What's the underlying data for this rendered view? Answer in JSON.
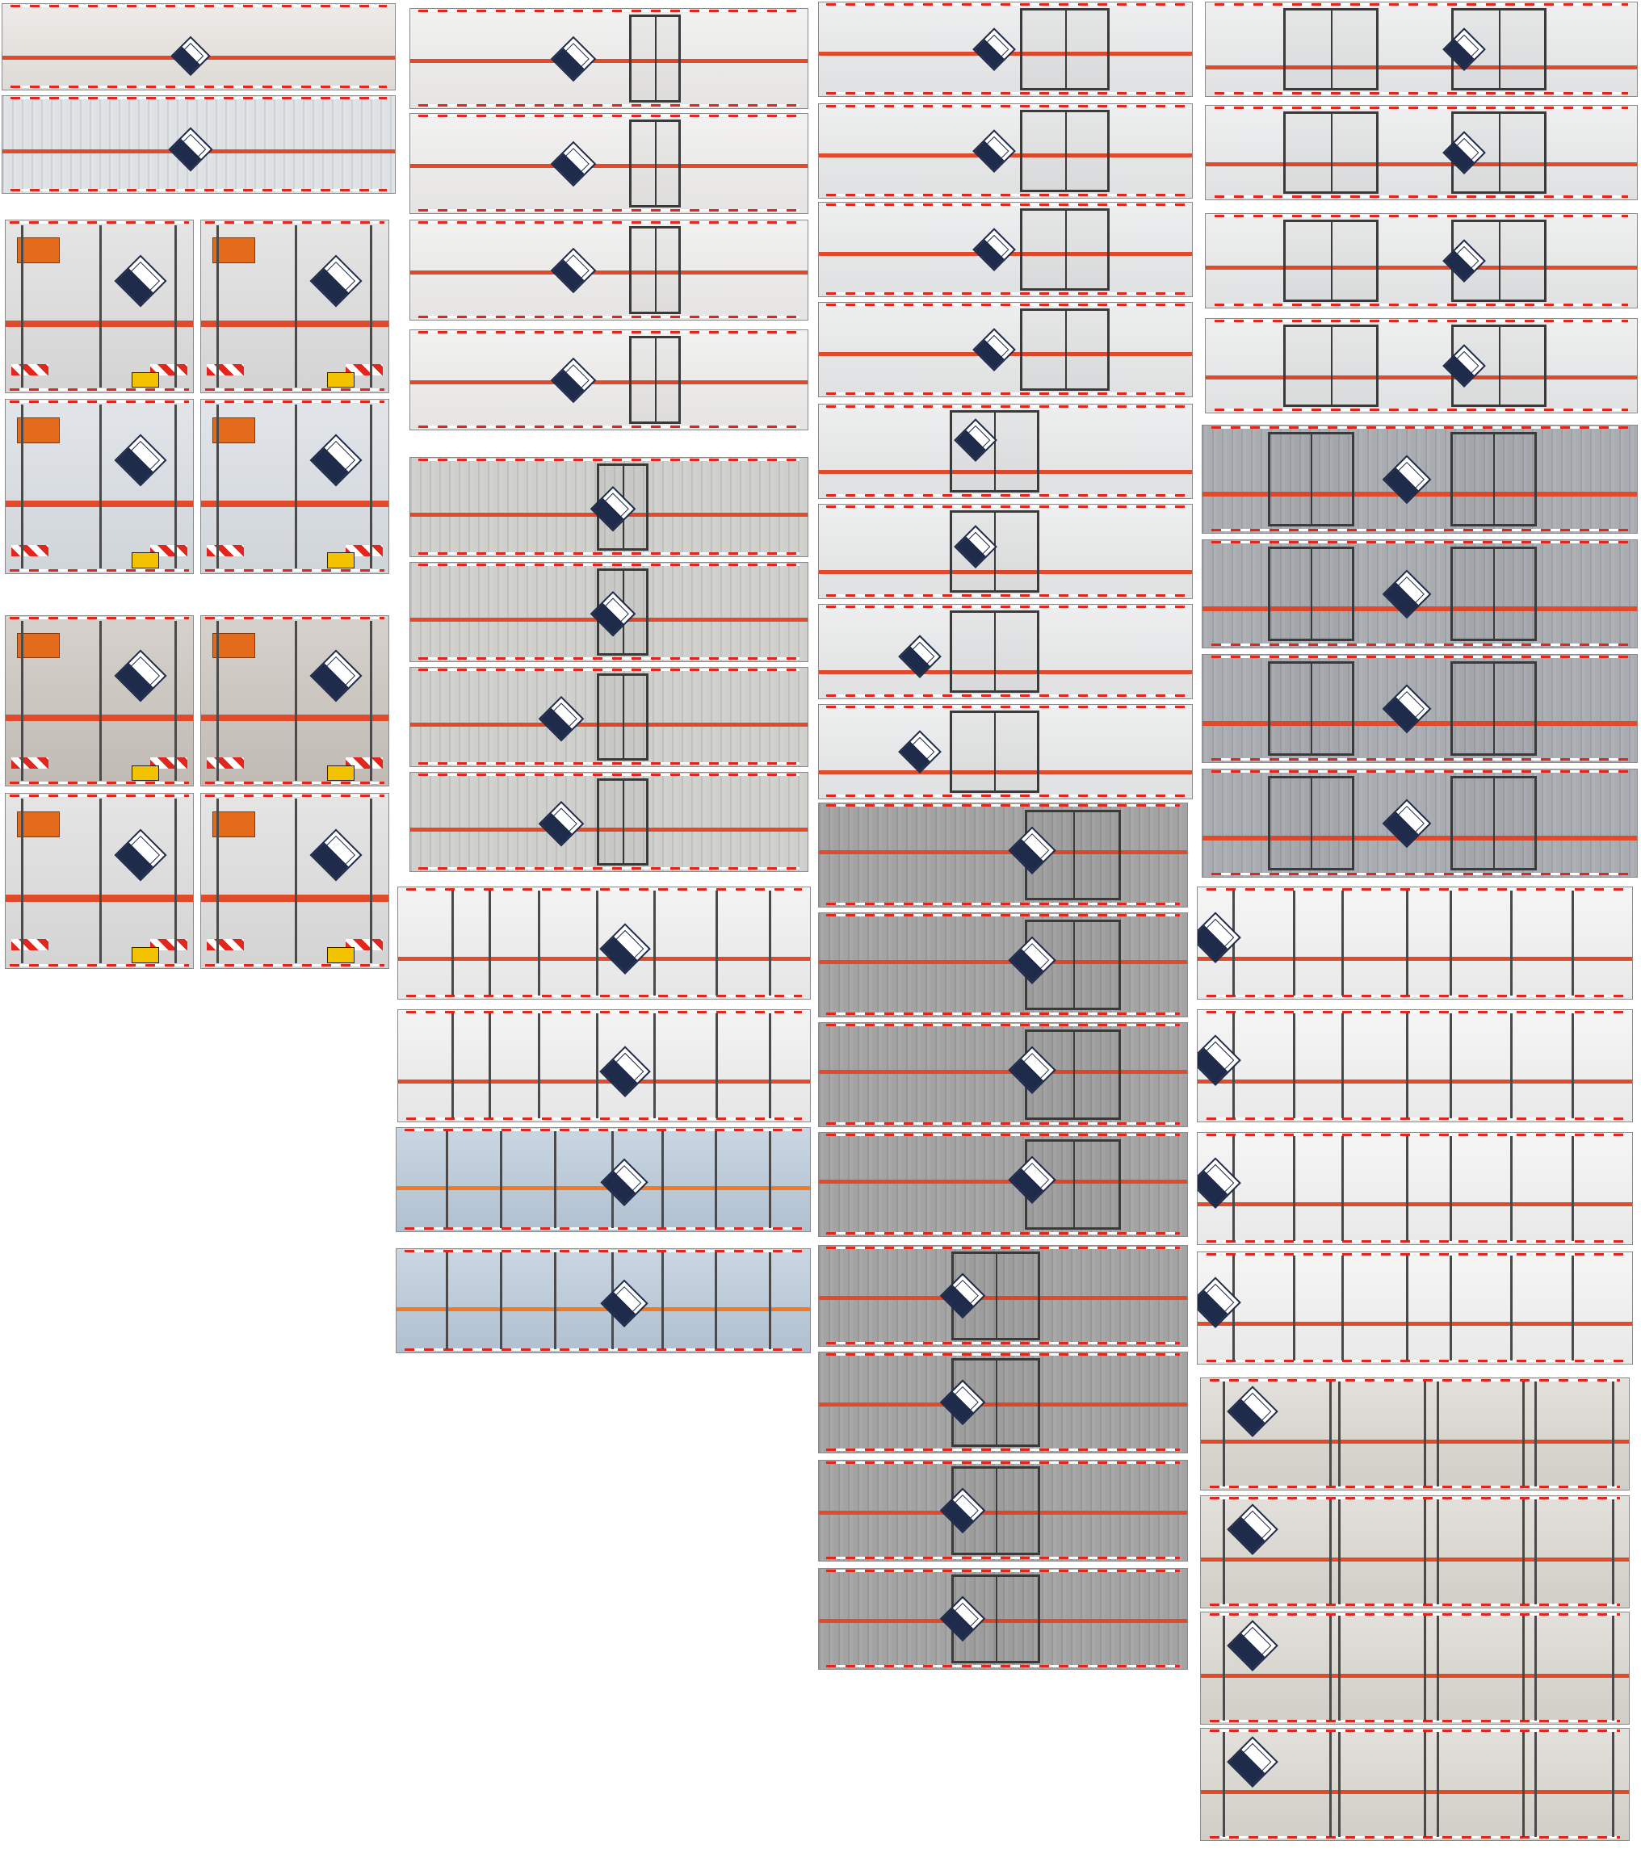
{
  "image": {
    "description_free": true,
    "colors": {
      "stripe_red": "#e24a2c",
      "stripe_orange": "#f07a25",
      "panel_light": "#ecebea",
      "panel_warm": "#e7e3df",
      "panel_grey": "#9a9a9a",
      "panel_blue": "#b8c8d8",
      "panel_beige": "#d9d6cf"
    },
    "icons": {
      "hazard": "corrosive-hazard-diamond-icon",
      "plate": "orange-warning-plate-icon"
    }
  }
}
